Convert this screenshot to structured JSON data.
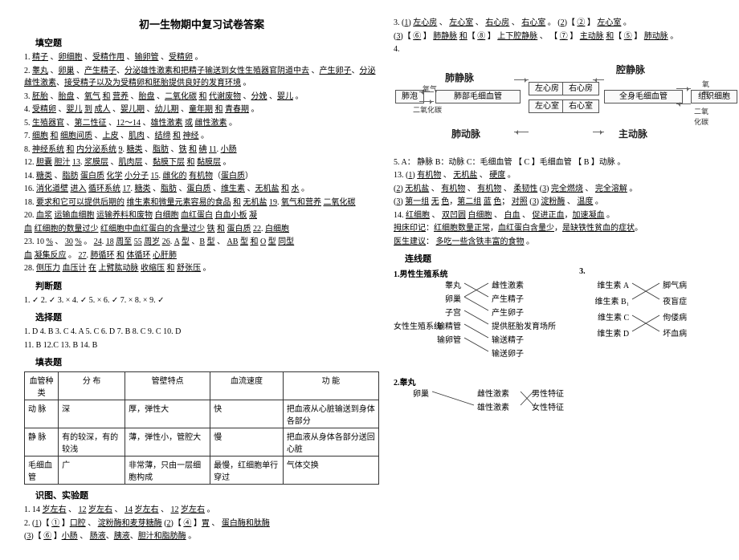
{
  "title": "初一生物期中复习试卷答案",
  "sections": {
    "fill_title": "填空题",
    "judge_title": "判断题",
    "choice_title": "选择题",
    "table_title": "填表题",
    "diagram_title": "识图、实验题",
    "link_title": "连线题"
  },
  "fill": [
    "1. 精子 、卵细胞 、受精作用 、输卵管 、受精卵 。",
    "2. 睾丸 、卵巢 、产生精子、分泌雄性激素和把精子输送到女性生殖器官阴道中去 、产生卵子、分泌雌性激素、接受精子以及为受精卵和胚胎提供良好的发育环境 。",
    "3. 胚胎 、胎盘 、氧气 和 营养 、胎盘 、二氧化碳 和 代谢废物 、分娩 、婴儿 。",
    "4. 受精卵 、婴儿 到 成人 、婴儿期 、幼儿期 、童年期 和 青春期 。",
    "5. 生殖器官 、第二性征 、12～14 、雄性激素 或 雌性激素 。",
    "7. 细胞 和 细胞间质 、上皮 、肌肉 、结缔 和 神经 。",
    "8. 神经系统 和 内分泌系统  9. 糖类 、脂肪 、铁 和 碘   11. 小肠",
    "12. 胆囊    胆汁    13. 浆膜层 、肌肉层 、黏膜下层 和 黏膜层 。",
    "14. 糖类 、脂肪    蛋白质   化学   小分子    15. 雌化的    有机物（蛋白质）",
    "16. 消化道壁 进入 循环系统  17. 糖类 、脂肪 、蛋白质 、维生素 、无机盐 和 水 。",
    "18. 要求和它可以提供后期的 维生素和微量元素容易的食品 和 无机盐  19. 氧气和营养   二氧化碳",
    "20. 血浆    运输血细胞   运输养料和废物    白细胞    血红蛋白   白血小板   凝",
    "血  红细胞的数量过少   红细胞中血红蛋白的含量过少   铁 和 蛋白质   22. 白细胞",
    "23. 10 % 、 30 % 。 24.  18 周至 55 周岁  26. A 型 、B 型 、 AB 型 和 O 型   同型",
    "血     凝集反应 。   27. 肺循环 和 体循环   心肝肺",
    "28. 侧压力    血压计 在 上臂肱动脉  收缩压  和 舒张压 。"
  ],
  "judge": "1. ✓   2. ✓   3. ×   4. ✓   5. ×   6. ✓   7. ×   8. ×   9. ✓",
  "choice": [
    "1. D   4. B   3. C   4. A   5. C   6. D   7. B   8. C   9. C   10. D",
    "11. B   12.C   13. B   14. B"
  ],
  "vessel_table": {
    "headers": [
      "血管种类",
      "分    布",
      "管壁特点",
      "血流速度",
      "功        能"
    ],
    "rows": [
      [
        "动    脉",
        "深",
        "厚，弹性大",
        "快",
        "把血液从心脏输送到身体各部分"
      ],
      [
        "静    脉",
        "有的较深，有的较浅",
        "薄，弹性小，管腔大",
        "慢",
        "把血液从身体各部分送回心脏"
      ],
      [
        "毛细血管",
        "广",
        "非常薄，只由一层细胞构成",
        "最慢，红细胞单行穿过",
        "气体交换"
      ]
    ]
  },
  "diag_lines": [
    "1.  14 岁左右 、 12 岁左右 、 14 岁左右 、 12 岁左右 。",
    "2.  (1)【 ① 】口腔 、 淀粉酶和麦芽糖酶     (2)【 ④ 】胃 、 蛋白酶和肽酶 ",
    "    (3)【 ⑥ 】小肠 、    肠液、胰液、胆汁和脂肪酶 。"
  ],
  "right_top": [
    "3.   (1) 左心房 、 左心室 、 右心房 、 右心室 。 (2)【 ② 】 左心室 。",
    "     (3)【 ⑥ 】 肺静脉 和【 ⑧ 】 上下腔静脉 、 【 ⑦ 】 主动脉 和【 ⑤ 】 肺动脉 。",
    "4."
  ],
  "circ": {
    "labels": {
      "fei_jingmai": "肺静脉",
      "qiang_jingmai": "腔静脉",
      "fei_mao": "肺部毛细血管",
      "quan_mao": "全身毛细血管",
      "fei_dongmai": "肺动脉",
      "zhu_dongmai": "主动脉",
      "feipao": "肺泡",
      "zuo_fang": "左心房",
      "zuo_shi": "左心室",
      "you_fang": "右心房",
      "you_shi": "右心室",
      "zuzhi": "组织细胞",
      "o2": "氧气",
      "co2": "二氧化碳",
      "o2b": "氧气",
      "co2b": "二氧化碳"
    }
  },
  "q5": "5.  A： 静脉  B：动脉  C：毛细血管   【 C 】毛细血管   【 B 】动脉 。",
  "q13": [
    "13.  (1) 有机物 、 无机盐 、 硬度 。",
    "     (2) 无机盐 、 有机物 、 有机物 、 柔韧性 (3) 完全燃烧 、 完全溶解 。",
    "     (3) 第一组 无 色，第二组  蓝  色；   对照    (3) 淀粉酶 、 温度 。",
    "14.  红细胞 、 双凹圆   白细胞 、 白血 、   促进正血，加速凝血 。",
    "     拇床印记：红细胞数量正常，血红蛋白含量少，是缺铁性贫血的症状。",
    "     医生建议：  多吃一些含铁丰富的食物  。"
  ],
  "links": {
    "g1": {
      "title": "1.男性生殖系统",
      "left": [
        "睾丸",
        "卵巢",
        "子宫",
        "输精管",
        "输卵管"
      ],
      "right": [
        "雌性激素",
        "产生精子",
        "产生卵子",
        "提供胚胎发育场所",
        "输送精子",
        "输送卵子"
      ],
      "foot_l": "女性生殖系统",
      "edges": [
        [
          0,
          1
        ],
        [
          1,
          2
        ],
        [
          1,
          0
        ],
        [
          2,
          3
        ],
        [
          3,
          4
        ],
        [
          4,
          5
        ]
      ]
    },
    "g2": {
      "title": "2.睾丸",
      "left": [
        "卵巢"
      ],
      "right": [
        "雌性激素",
        "雄性激素"
      ],
      "far_right": [
        "男性特征",
        "女性特征"
      ],
      "edges": [
        [
          0,
          1
        ]
      ]
    },
    "g3": {
      "title": "3.",
      "left": [
        "维生素 A",
        "维生素 B₁",
        "维生素 C",
        "维生素 D"
      ],
      "right": [
        "脚气病",
        "夜盲症",
        "佝偻病",
        "坏血病"
      ],
      "edges": [
        [
          0,
          1
        ],
        [
          1,
          0
        ],
        [
          2,
          3
        ],
        [
          3,
          2
        ]
      ]
    }
  }
}
